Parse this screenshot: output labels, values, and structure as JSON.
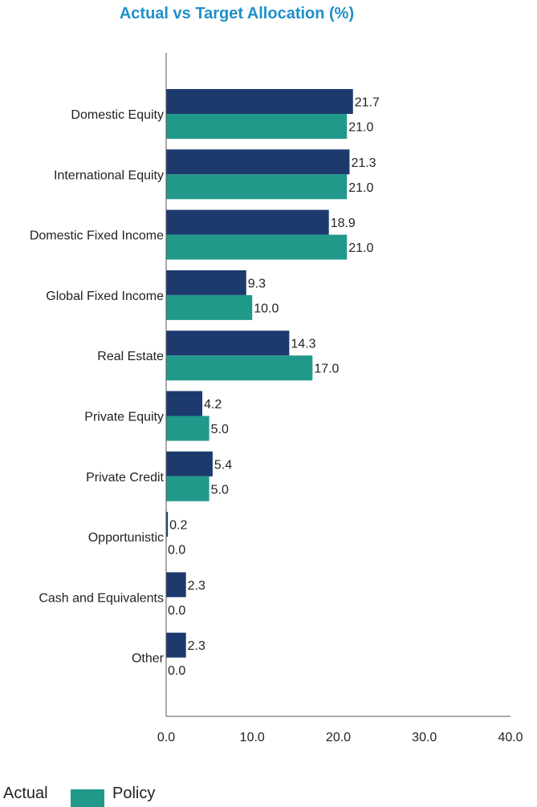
{
  "colors": {
    "title": "#1f8fc9",
    "actual": "#1c3a6e",
    "policy": "#21998a",
    "axis": "#555555",
    "text": "#222222"
  },
  "chart_data": {
    "type": "bar",
    "orientation": "horizontal",
    "title": "Actual vs Target Allocation (%)",
    "categories": [
      "Domestic Equity",
      "International Equity",
      "Domestic Fixed Income",
      "Global Fixed Income",
      "Real Estate",
      "Private Equity",
      "Private Credit",
      "Opportunistic",
      "Cash and Equivalents",
      "Other"
    ],
    "series": [
      {
        "name": "Actual",
        "values": [
          21.7,
          21.3,
          18.9,
          9.3,
          14.3,
          4.2,
          5.4,
          0.2,
          2.3,
          2.3
        ],
        "labels": [
          "21.7",
          "21.3",
          "18.9",
          "9.3",
          "14.3",
          "4.2",
          "5.4",
          "0.2",
          "2.3",
          "2.3"
        ]
      },
      {
        "name": "Policy",
        "values": [
          21.0,
          21.0,
          21.0,
          10.0,
          17.0,
          5.0,
          5.0,
          0.0,
          0.0,
          0.0
        ],
        "labels": [
          "21.0",
          "21.0",
          "21.0",
          "10.0",
          "17.0",
          "5.0",
          "5.0",
          "0.0",
          "0.0",
          "0.0"
        ]
      }
    ],
    "xlim": [
      0,
      40
    ],
    "xticks": [
      0,
      10,
      20,
      30,
      40
    ],
    "xtick_labels": [
      "0.0",
      "10.0",
      "20.0",
      "30.0",
      "40.0"
    ],
    "grid": false,
    "legend": {
      "position": "bottom-left",
      "entries": [
        "Actual",
        "Policy"
      ]
    }
  }
}
